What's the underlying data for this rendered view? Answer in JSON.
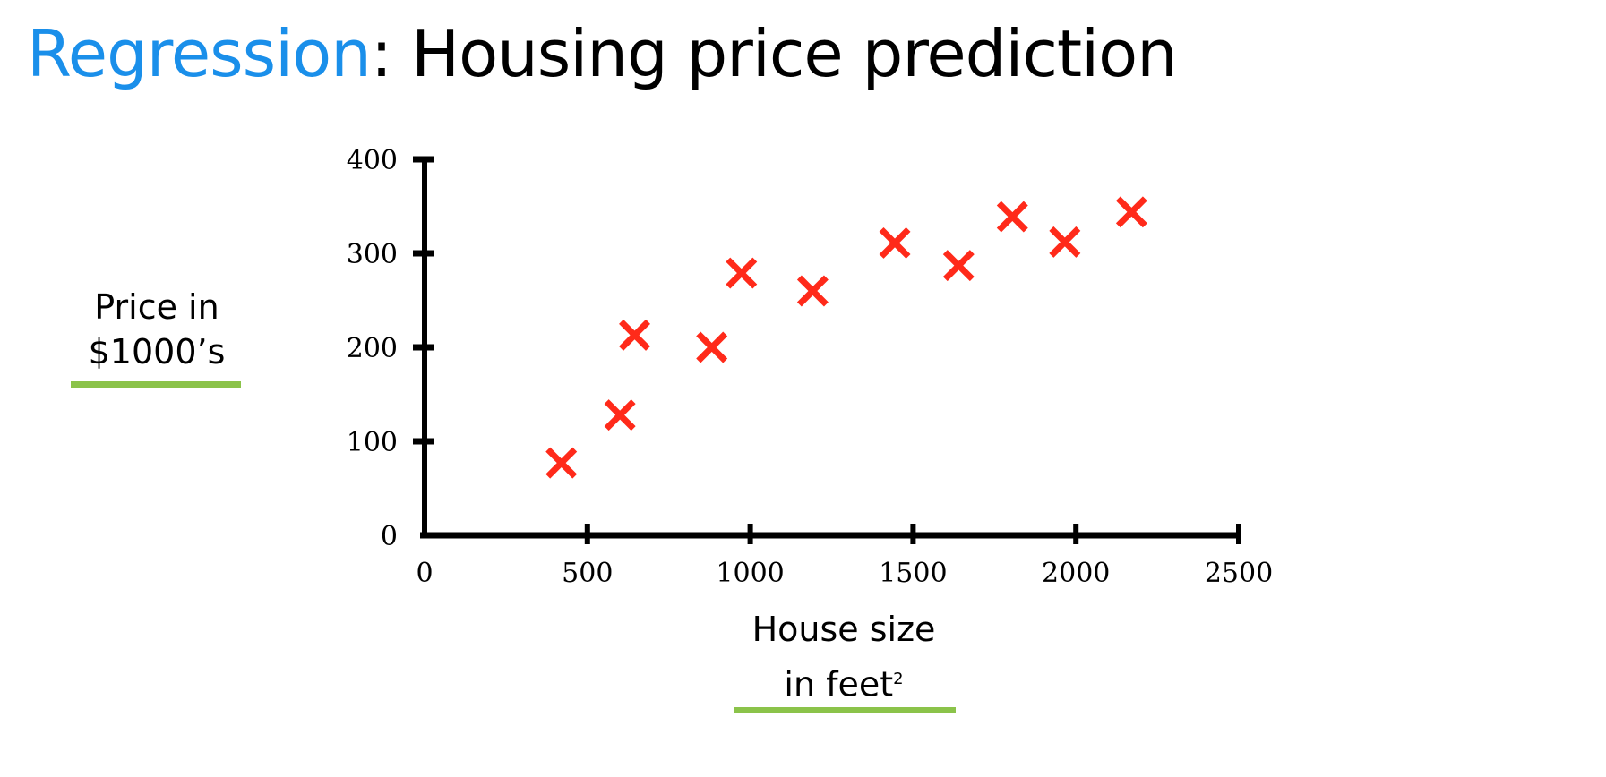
{
  "title": {
    "highlight": "Regression",
    "rest": ": Housing price prediction"
  },
  "colors": {
    "highlight": "#1a8fea",
    "marker": "#ff2a1a",
    "underline": "#8bc34a"
  },
  "chart_data": {
    "type": "scatter",
    "title": "Regression: Housing price prediction",
    "xlabel": "House size in feet²",
    "ylabel": "Price in $1000's",
    "xlim": [
      0,
      2500
    ],
    "ylim": [
      0,
      400
    ],
    "xticks": [
      "0",
      "500",
      "1000",
      "1500",
      "2000",
      "2500"
    ],
    "yticks": [
      "0",
      "100",
      "200",
      "300",
      "400"
    ],
    "marker": "x",
    "grid": false,
    "points": [
      {
        "x": 420,
        "y": 77
      },
      {
        "x": 600,
        "y": 128
      },
      {
        "x": 645,
        "y": 213
      },
      {
        "x": 882,
        "y": 200
      },
      {
        "x": 973,
        "y": 279
      },
      {
        "x": 1192,
        "y": 260
      },
      {
        "x": 1444,
        "y": 311
      },
      {
        "x": 1640,
        "y": 287
      },
      {
        "x": 1805,
        "y": 339
      },
      {
        "x": 1966,
        "y": 312
      },
      {
        "x": 2171,
        "y": 344
      }
    ]
  },
  "labels": {
    "y_line1": "Price in",
    "y_line2": "$1000’s",
    "x_line1": "House size",
    "x_line2": "in feet",
    "x_sup": "2"
  }
}
